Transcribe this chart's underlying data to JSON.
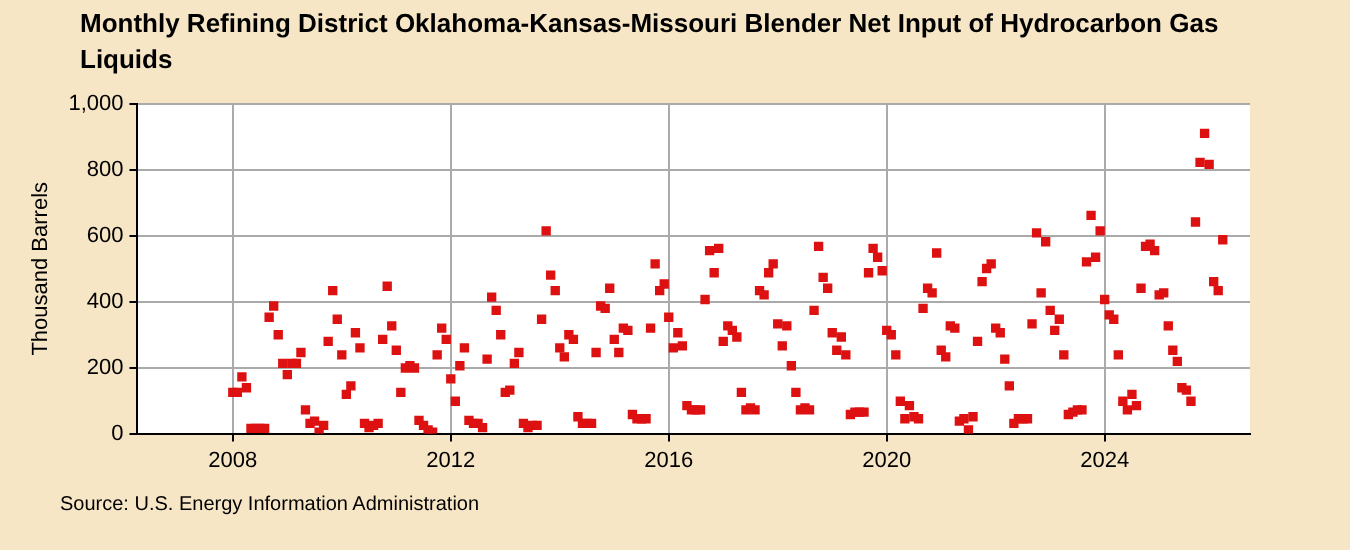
{
  "chart_data": {
    "type": "scatter",
    "title": "Monthly Refining District Oklahoma-Kansas-Missouri Blender Net Input of Hydrocarbon Gas Liquids",
    "ylabel": "Thousand Barrels",
    "annotations": [
      "Source: U.S. Energy Information Administration"
    ],
    "x": [
      "2008-01",
      "2008-02",
      "2008-03",
      "2008-04",
      "2008-05",
      "2008-06",
      "2008-07",
      "2008-08",
      "2008-09",
      "2008-10",
      "2008-11",
      "2008-12",
      "2009-01",
      "2009-02",
      "2009-03",
      "2009-04",
      "2009-05",
      "2009-06",
      "2009-07",
      "2009-08",
      "2009-09",
      "2009-10",
      "2009-11",
      "2009-12",
      "2010-01",
      "2010-02",
      "2010-03",
      "2010-04",
      "2010-05",
      "2010-06",
      "2010-07",
      "2010-08",
      "2010-09",
      "2010-10",
      "2010-11",
      "2010-12",
      "2011-01",
      "2011-02",
      "2011-03",
      "2011-04",
      "2011-05",
      "2011-06",
      "2011-07",
      "2011-08",
      "2011-09",
      "2011-10",
      "2011-11",
      "2011-12",
      "2012-01",
      "2012-02",
      "2012-03",
      "2012-04",
      "2012-05",
      "2012-06",
      "2012-07",
      "2012-08",
      "2012-09",
      "2012-10",
      "2012-11",
      "2012-12",
      "2013-01",
      "2013-02",
      "2013-03",
      "2013-04",
      "2013-05",
      "2013-06",
      "2013-07",
      "2013-08",
      "2013-09",
      "2013-10",
      "2013-11",
      "2013-12",
      "2014-01",
      "2014-02",
      "2014-03",
      "2014-04",
      "2014-05",
      "2014-06",
      "2014-07",
      "2014-08",
      "2014-09",
      "2014-10",
      "2014-11",
      "2014-12",
      "2015-01",
      "2015-02",
      "2015-03",
      "2015-04",
      "2015-05",
      "2015-06",
      "2015-07",
      "2015-08",
      "2015-09",
      "2015-10",
      "2015-11",
      "2015-12",
      "2016-01",
      "2016-02",
      "2016-03",
      "2016-04",
      "2016-05",
      "2016-06",
      "2016-07",
      "2016-08",
      "2016-09",
      "2016-10",
      "2016-11",
      "2016-12",
      "2017-01",
      "2017-02",
      "2017-03",
      "2017-04",
      "2017-05",
      "2017-06",
      "2017-07",
      "2017-08",
      "2017-09",
      "2017-10",
      "2017-11",
      "2017-12",
      "2018-01",
      "2018-02",
      "2018-03",
      "2018-04",
      "2018-05",
      "2018-06",
      "2018-07",
      "2018-08",
      "2018-09",
      "2018-10",
      "2018-11",
      "2018-12",
      "2019-01",
      "2019-02",
      "2019-03",
      "2019-04",
      "2019-05",
      "2019-06",
      "2019-07",
      "2019-08",
      "2019-09",
      "2019-10",
      "2019-11",
      "2019-12",
      "2020-01",
      "2020-02",
      "2020-03",
      "2020-04",
      "2020-05",
      "2020-06",
      "2020-07",
      "2020-08",
      "2020-09",
      "2020-10",
      "2020-11",
      "2020-12",
      "2021-01",
      "2021-02",
      "2021-03",
      "2021-04",
      "2021-05",
      "2021-06",
      "2021-07",
      "2021-08",
      "2021-09",
      "2021-10",
      "2021-11",
      "2021-12",
      "2022-01",
      "2022-02",
      "2022-03",
      "2022-04",
      "2022-05",
      "2022-06",
      "2022-07",
      "2022-08",
      "2022-09",
      "2022-10",
      "2022-11",
      "2022-12",
      "2023-01",
      "2023-02",
      "2023-03",
      "2023-04",
      "2023-05",
      "2023-06",
      "2023-07",
      "2023-08",
      "2023-09",
      "2023-10",
      "2023-11",
      "2023-12",
      "2024-01",
      "2024-02",
      "2024-03",
      "2024-04",
      "2024-05",
      "2024-06",
      "2024-07",
      "2024-08",
      "2024-09",
      "2024-10",
      "2024-11",
      "2024-12",
      "2025-01",
      "2025-02",
      "2025-03",
      "2025-04",
      "2025-05",
      "2025-06",
      "2025-07",
      "2025-08",
      "2025-09",
      "2025-10",
      "2025-11",
      "2025-12",
      "2026-01",
      "2026-02",
      "2026-03"
    ],
    "series": [
      {
        "color": "#dd1111",
        "values": [
          125,
          125,
          172,
          139,
          16,
          16,
          16,
          16,
          353,
          387,
          300,
          213,
          179,
          213,
          213,
          246,
          72,
          31,
          38,
          4,
          25,
          280,
          434,
          347,
          239,
          119,
          145,
          306,
          260,
          31,
          18,
          25,
          31,
          286,
          447,
          327,
          253,
          125,
          199,
          206,
          199,
          40,
          25,
          11,
          4,
          239,
          320,
          286,
          166,
          98,
          206,
          260,
          40,
          31,
          31,
          18,
          226,
          414,
          374,
          300,
          125,
          132,
          213,
          246,
          31,
          18,
          25,
          25,
          347,
          615,
          481,
          434,
          260,
          233,
          300,
          286,
          51,
          31,
          31,
          31,
          246,
          387,
          380,
          441,
          286,
          246,
          320,
          313,
          58,
          45,
          45,
          45,
          320,
          515,
          434,
          454,
          353,
          260,
          306,
          266,
          85,
          72,
          72,
          72,
          407,
          555,
          488,
          562,
          280,
          327,
          313,
          293,
          125,
          72,
          78,
          72,
          434,
          421,
          488,
          515,
          333,
          266,
          327,
          206,
          125,
          72,
          78,
          72,
          374,
          568,
          474,
          441,
          306,
          253,
          293,
          239,
          58,
          65,
          65,
          65,
          488,
          562,
          535,
          494,
          313,
          300,
          239,
          98,
          45,
          85,
          51,
          45,
          380,
          441,
          427,
          548,
          253,
          233,
          327,
          320,
          38,
          45,
          11,
          51,
          280,
          461,
          501,
          515,
          320,
          306,
          226,
          145,
          31,
          45,
          45,
          45,
          333,
          609,
          427,
          582,
          374,
          313,
          347,
          239,
          58,
          65,
          72,
          72,
          521,
          662,
          535,
          615,
          407,
          360,
          347,
          239,
          98,
          72,
          119,
          85,
          441,
          568,
          575,
          555,
          421,
          427,
          327,
          253,
          219,
          139,
          132,
          98,
          642,
          823,
          911,
          817,
          461,
          434,
          588
        ]
      }
    ],
    "xlim": [
      "2006-04",
      "2026-09"
    ],
    "xticks": [
      "2008",
      "2012",
      "2016",
      "2020",
      "2024"
    ],
    "ylim": [
      0,
      1000
    ],
    "yticks": [
      0,
      200,
      400,
      600,
      800,
      {
        "value": 1000,
        "label": "1,000"
      }
    ],
    "grid": true,
    "marker": "square",
    "legend": false
  }
}
